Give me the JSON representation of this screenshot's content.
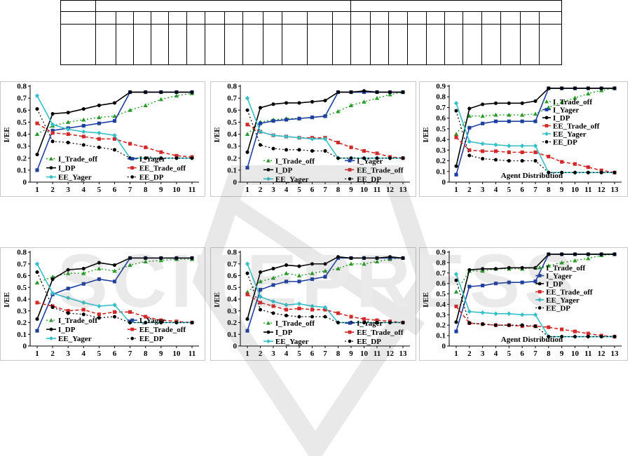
{
  "figure": {
    "watermark_text": "SCITEPRESS SCIENCE AND TECHNOLOGY PUBLICATIONS"
  },
  "colors": {
    "trade_off": "#2a9a2a",
    "yager": "#1f3f9f",
    "dp": "#000000",
    "ee_trade_off": "#d02a2a",
    "ee_yager": "#35c0c8",
    "ee_dp": "#000000"
  },
  "chart_data": [
    {
      "type": "line",
      "ylabel": "I/EE",
      "ylim": [
        0,
        0.8
      ],
      "yticks": [
        0,
        0.1,
        0.2,
        0.3,
        0.4,
        0.5,
        0.6,
        0.7,
        0.8
      ],
      "x": [
        1,
        2,
        3,
        4,
        5,
        6,
        7,
        8,
        9,
        10,
        11
      ],
      "legend_title": "",
      "series": [
        {
          "name": "I_Trade_off",
          "key": "trade_off",
          "values": [
            0.4,
            0.47,
            0.5,
            0.52,
            0.54,
            0.55,
            0.6,
            0.64,
            0.69,
            0.72,
            0.74
          ]
        },
        {
          "name": "I_Yager",
          "key": "yager",
          "values": [
            0.1,
            0.43,
            0.45,
            0.47,
            0.49,
            0.51,
            0.75,
            0.75,
            0.75,
            0.75,
            0.75
          ]
        },
        {
          "name": "I_DP",
          "key": "dp",
          "values": [
            0.23,
            0.57,
            0.58,
            0.61,
            0.64,
            0.66,
            0.75,
            0.75,
            0.75,
            0.75,
            0.75
          ]
        },
        {
          "name": "EE_Trade_off",
          "key": "ee_trade_off",
          "values": [
            0.49,
            0.41,
            0.4,
            0.38,
            0.36,
            0.36,
            0.32,
            0.29,
            0.25,
            0.22,
            0.21
          ]
        },
        {
          "name": "EE_Yager",
          "key": "ee_yager",
          "values": [
            0.72,
            0.48,
            0.44,
            0.42,
            0.41,
            0.39,
            0.2,
            0.2,
            0.2,
            0.2,
            0.2
          ]
        },
        {
          "name": "EE_DP",
          "key": "ee_dp",
          "values": [
            0.61,
            0.34,
            0.33,
            0.31,
            0.29,
            0.27,
            0.2,
            0.2,
            0.2,
            0.2,
            0.2
          ]
        }
      ]
    },
    {
      "type": "line",
      "ylabel": "I/EE",
      "ylim": [
        0,
        0.8
      ],
      "yticks": [
        0,
        0.1,
        0.2,
        0.3,
        0.4,
        0.5,
        0.6,
        0.7,
        0.8
      ],
      "x": [
        1,
        2,
        3,
        4,
        5,
        6,
        7,
        8,
        9,
        10,
        11,
        12,
        13
      ],
      "legend_title": "",
      "series": [
        {
          "name": "I_Trade_off",
          "key": "trade_off",
          "values": [
            0.4,
            0.5,
            0.52,
            0.53,
            0.53,
            0.54,
            0.55,
            0.59,
            0.64,
            0.67,
            0.7,
            0.73,
            0.75
          ]
        },
        {
          "name": "I_Yager",
          "key": "yager",
          "values": [
            0.12,
            0.49,
            0.51,
            0.52,
            0.53,
            0.54,
            0.55,
            0.75,
            0.75,
            0.75,
            0.75,
            0.75,
            0.75
          ]
        },
        {
          "name": "I_DP",
          "key": "dp",
          "values": [
            0.25,
            0.62,
            0.65,
            0.66,
            0.66,
            0.67,
            0.68,
            0.75,
            0.75,
            0.76,
            0.75,
            0.75,
            0.75
          ]
        },
        {
          "name": "EE_Trade_off",
          "key": "ee_trade_off",
          "values": [
            0.48,
            0.42,
            0.39,
            0.38,
            0.37,
            0.37,
            0.37,
            0.33,
            0.29,
            0.26,
            0.24,
            0.21,
            0.2
          ]
        },
        {
          "name": "EE_Yager",
          "key": "ee_yager",
          "values": [
            0.7,
            0.42,
            0.39,
            0.38,
            0.37,
            0.36,
            0.36,
            0.2,
            0.2,
            0.2,
            0.2,
            0.2,
            0.2
          ]
        },
        {
          "name": "EE_DP",
          "key": "ee_dp",
          "values": [
            0.6,
            0.31,
            0.28,
            0.27,
            0.27,
            0.26,
            0.26,
            0.2,
            0.2,
            0.2,
            0.2,
            0.2,
            0.2
          ]
        }
      ]
    },
    {
      "type": "line",
      "ylabel": "I/EE",
      "ylim": [
        0,
        0.9
      ],
      "yticks": [
        0,
        0.1,
        0.2,
        0.3,
        0.4,
        0.5,
        0.6,
        0.7,
        0.8,
        0.9
      ],
      "x": [
        1,
        2,
        3,
        4,
        5,
        6,
        7,
        8,
        9,
        10,
        11,
        12,
        13
      ],
      "legend_title": "Agent Distribution",
      "series": [
        {
          "name": "I_Trade_off",
          "key": "trade_off",
          "values": [
            0.45,
            0.62,
            0.62,
            0.63,
            0.63,
            0.63,
            0.64,
            0.7,
            0.75,
            0.79,
            0.83,
            0.86,
            0.88
          ]
        },
        {
          "name": "I_Yager",
          "key": "yager",
          "values": [
            0.07,
            0.51,
            0.55,
            0.57,
            0.57,
            0.57,
            0.57,
            0.88,
            0.88,
            0.88,
            0.88,
            0.88,
            0.88
          ]
        },
        {
          "name": "I_DP",
          "key": "dp",
          "values": [
            0.15,
            0.69,
            0.73,
            0.74,
            0.74,
            0.74,
            0.76,
            0.88,
            0.88,
            0.88,
            0.88,
            0.88,
            0.88
          ]
        },
        {
          "name": "EE_Trade_off",
          "key": "ee_trade_off",
          "values": [
            0.42,
            0.3,
            0.29,
            0.29,
            0.28,
            0.28,
            0.28,
            0.24,
            0.19,
            0.17,
            0.14,
            0.11,
            0.09
          ]
        },
        {
          "name": "EE_Yager",
          "key": "ee_yager",
          "values": [
            0.74,
            0.38,
            0.36,
            0.35,
            0.34,
            0.34,
            0.34,
            0.09,
            0.09,
            0.09,
            0.09,
            0.09,
            0.09
          ]
        },
        {
          "name": "EE_DP",
          "key": "ee_dp",
          "values": [
            0.67,
            0.25,
            0.22,
            0.21,
            0.2,
            0.2,
            0.2,
            0.09,
            0.09,
            0.09,
            0.09,
            0.09,
            0.09
          ]
        }
      ]
    },
    {
      "type": "line",
      "ylabel": "I/EE",
      "ylim": [
        0,
        0.8
      ],
      "yticks": [
        0,
        0.1,
        0.2,
        0.3,
        0.4,
        0.5,
        0.6,
        0.7,
        0.8
      ],
      "x": [
        1,
        2,
        3,
        4,
        5,
        6,
        7,
        8,
        9,
        10,
        11
      ],
      "legend_title": "",
      "series": [
        {
          "name": "I_Trade_off",
          "key": "trade_off",
          "values": [
            0.54,
            0.59,
            0.62,
            0.62,
            0.66,
            0.64,
            0.69,
            0.72,
            0.73,
            0.74,
            0.74
          ]
        },
        {
          "name": "I_Yager",
          "key": "yager",
          "values": [
            0.13,
            0.44,
            0.49,
            0.53,
            0.57,
            0.55,
            0.75,
            0.75,
            0.75,
            0.75,
            0.75
          ]
        },
        {
          "name": "I_DP",
          "key": "dp",
          "values": [
            0.23,
            0.57,
            0.65,
            0.66,
            0.71,
            0.69,
            0.75,
            0.75,
            0.75,
            0.75,
            0.75
          ]
        },
        {
          "name": "EE_Trade_off",
          "key": "ee_trade_off",
          "values": [
            0.37,
            0.34,
            0.3,
            0.31,
            0.27,
            0.29,
            0.29,
            0.25,
            0.22,
            0.21,
            0.2
          ]
        },
        {
          "name": "EE_Yager",
          "key": "ee_yager",
          "values": [
            0.7,
            0.45,
            0.41,
            0.37,
            0.34,
            0.35,
            0.2,
            0.2,
            0.2,
            0.2,
            0.2
          ]
        },
        {
          "name": "EE_DP",
          "key": "ee_dp",
          "values": [
            0.63,
            0.33,
            0.28,
            0.27,
            0.24,
            0.25,
            0.2,
            0.2,
            0.2,
            0.2,
            0.2
          ]
        }
      ]
    },
    {
      "type": "line",
      "ylabel": "I/EE",
      "ylim": [
        0,
        0.8
      ],
      "yticks": [
        0,
        0.1,
        0.2,
        0.3,
        0.4,
        0.5,
        0.6,
        0.7,
        0.8
      ],
      "x": [
        1,
        2,
        3,
        4,
        5,
        6,
        7,
        8,
        9,
        10,
        11,
        12,
        13
      ],
      "legend_title": "",
      "series": [
        {
          "name": "I_Trade_off",
          "key": "trade_off",
          "values": [
            0.46,
            0.55,
            0.58,
            0.62,
            0.6,
            0.62,
            0.64,
            0.66,
            0.7,
            0.7,
            0.72,
            0.74,
            0.75
          ]
        },
        {
          "name": "I_Yager",
          "key": "yager",
          "values": [
            0.13,
            0.48,
            0.52,
            0.55,
            0.55,
            0.57,
            0.59,
            0.75,
            0.75,
            0.75,
            0.75,
            0.75,
            0.75
          ]
        },
        {
          "name": "I_DP",
          "key": "dp",
          "values": [
            0.23,
            0.63,
            0.66,
            0.69,
            0.68,
            0.7,
            0.7,
            0.76,
            0.75,
            0.75,
            0.75,
            0.76,
            0.75
          ]
        },
        {
          "name": "EE_Trade_off",
          "key": "ee_trade_off",
          "values": [
            0.44,
            0.37,
            0.34,
            0.31,
            0.32,
            0.31,
            0.31,
            0.28,
            0.25,
            0.23,
            0.22,
            0.21,
            0.2
          ]
        },
        {
          "name": "EE_Yager",
          "key": "ee_yager",
          "values": [
            0.7,
            0.42,
            0.38,
            0.35,
            0.36,
            0.34,
            0.33,
            0.2,
            0.2,
            0.2,
            0.2,
            0.2,
            0.2
          ]
        },
        {
          "name": "EE_DP",
          "key": "ee_dp",
          "values": [
            0.62,
            0.31,
            0.28,
            0.26,
            0.25,
            0.25,
            0.25,
            0.2,
            0.2,
            0.2,
            0.2,
            0.2,
            0.2
          ]
        }
      ]
    },
    {
      "type": "line",
      "ylabel": "I/EE",
      "ylim": [
        0,
        0.9
      ],
      "yticks": [
        0,
        0.1,
        0.2,
        0.3,
        0.4,
        0.5,
        0.6,
        0.7,
        0.8,
        0.9
      ],
      "x": [
        1,
        2,
        3,
        4,
        5,
        6,
        7,
        8,
        9,
        10,
        11,
        12,
        13
      ],
      "legend_title": "Agent Distribution",
      "series": [
        {
          "name": "I_Trade_off",
          "key": "trade_off",
          "values": [
            0.52,
            0.72,
            0.72,
            0.74,
            0.74,
            0.74,
            0.75,
            0.77,
            0.8,
            0.82,
            0.84,
            0.87,
            0.88
          ]
        },
        {
          "name": "I_Yager",
          "key": "yager",
          "values": [
            0.14,
            0.57,
            0.58,
            0.6,
            0.61,
            0.61,
            0.62,
            0.88,
            0.88,
            0.88,
            0.88,
            0.88,
            0.88
          ]
        },
        {
          "name": "I_DP",
          "key": "dp",
          "values": [
            0.23,
            0.73,
            0.74,
            0.74,
            0.75,
            0.75,
            0.75,
            0.88,
            0.88,
            0.88,
            0.88,
            0.88,
            0.88
          ]
        },
        {
          "name": "EE_Trade_off",
          "key": "ee_trade_off",
          "values": [
            0.38,
            0.22,
            0.21,
            0.2,
            0.2,
            0.19,
            0.19,
            0.18,
            0.16,
            0.14,
            0.12,
            0.1,
            0.09
          ]
        },
        {
          "name": "EE_Yager",
          "key": "ee_yager",
          "values": [
            0.69,
            0.33,
            0.32,
            0.31,
            0.31,
            0.3,
            0.3,
            0.09,
            0.09,
            0.09,
            0.09,
            0.09,
            0.09
          ]
        },
        {
          "name": "EE_DP",
          "key": "ee_dp",
          "values": [
            0.63,
            0.22,
            0.21,
            0.2,
            0.2,
            0.2,
            0.19,
            0.09,
            0.09,
            0.09,
            0.09,
            0.09,
            0.09
          ]
        }
      ]
    }
  ]
}
